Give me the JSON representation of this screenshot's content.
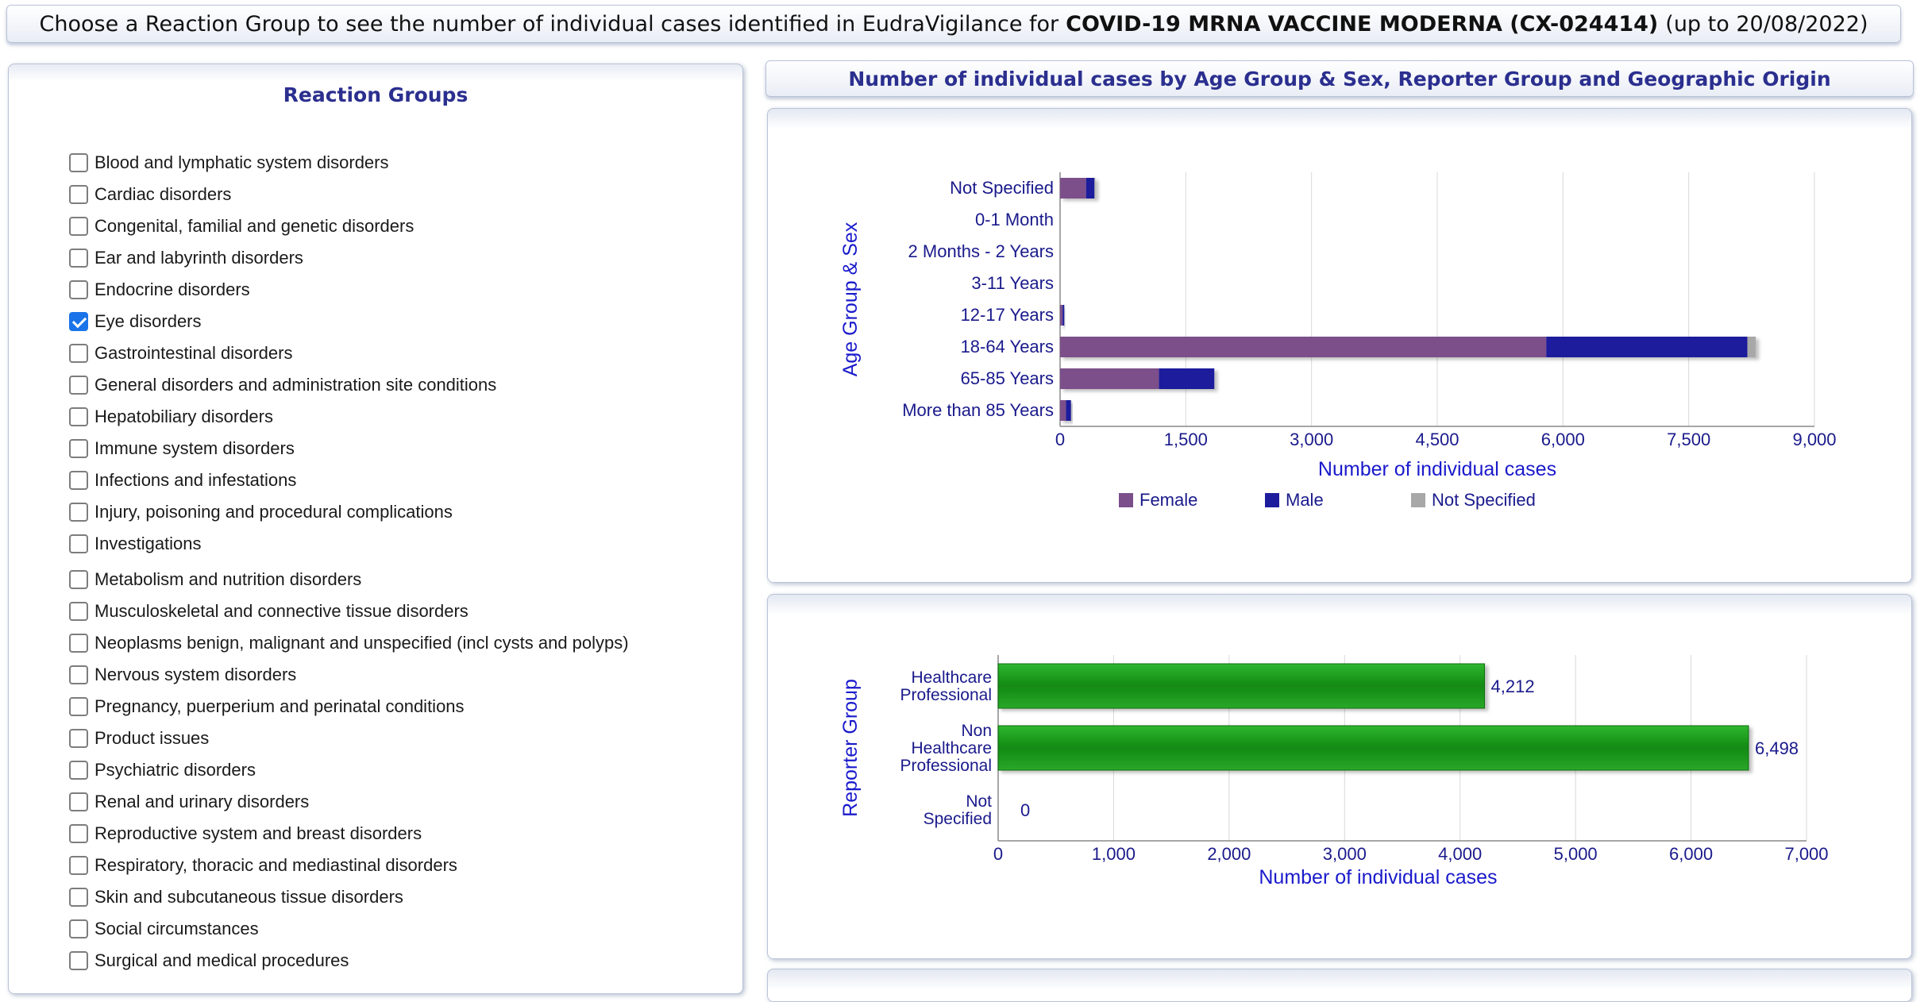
{
  "header": {
    "prefix": "Choose a Reaction Group to see the number of individual cases identified in EudraVigilance for",
    "product": "COVID-19 MRNA VACCINE MODERNA (CX-024414)",
    "suffix": "(up to 20/08/2022)"
  },
  "left_panel": {
    "title": "Reaction Groups",
    "items": [
      {
        "label": "Blood and lymphatic system disorders",
        "checked": false
      },
      {
        "label": "Cardiac disorders",
        "checked": false
      },
      {
        "label": "Congenital, familial and genetic disorders",
        "checked": false
      },
      {
        "label": "Ear and labyrinth disorders",
        "checked": false
      },
      {
        "label": "Endocrine disorders",
        "checked": false
      },
      {
        "label": "Eye disorders",
        "checked": true
      },
      {
        "label": "Gastrointestinal disorders",
        "checked": false
      },
      {
        "label": "General disorders and administration site conditions",
        "checked": false
      },
      {
        "label": "Hepatobiliary disorders",
        "checked": false
      },
      {
        "label": "Immune system disorders",
        "checked": false
      },
      {
        "label": "Infections and infestations",
        "checked": false
      },
      {
        "label": "Injury, poisoning and procedural complications",
        "checked": false
      },
      {
        "label": "Investigations",
        "checked": false
      },
      {
        "label": "Metabolism and nutrition disorders",
        "checked": false
      },
      {
        "label": "Musculoskeletal and connective tissue disorders",
        "checked": false
      },
      {
        "label": "Neoplasms benign, malignant and unspecified (incl cysts and polyps)",
        "checked": false
      },
      {
        "label": "Nervous system disorders",
        "checked": false
      },
      {
        "label": "Pregnancy, puerperium and perinatal conditions",
        "checked": false
      },
      {
        "label": "Product issues",
        "checked": false
      },
      {
        "label": "Psychiatric disorders",
        "checked": false
      },
      {
        "label": "Renal and urinary disorders",
        "checked": false
      },
      {
        "label": "Reproductive system and breast disorders",
        "checked": false
      },
      {
        "label": "Respiratory, thoracic and mediastinal disorders",
        "checked": false
      },
      {
        "label": "Skin and subcutaneous tissue disorders",
        "checked": false
      },
      {
        "label": "Social circumstances",
        "checked": false
      },
      {
        "label": "Surgical and medical procedures",
        "checked": false
      }
    ]
  },
  "right_title": "Number of individual cases by Age Group & Sex, Reporter Group and Geographic Origin",
  "colors": {
    "female": "#7b4f8a",
    "male": "#1c1c9c",
    "not_specified": "#a8a8a8",
    "reporter_bar": "#1e9a1e",
    "axis_text": "#1a1a8c",
    "axis_title": "#1a1acc"
  },
  "chart_data": [
    {
      "type": "bar",
      "orientation": "horizontal",
      "stacked": true,
      "categories": [
        "Not Specified",
        "0-1 Month",
        "2 Months - 2 Years",
        "3-11 Years",
        "12-17 Years",
        "18-64 Years",
        "65-85 Years",
        "More than 85 Years"
      ],
      "series": [
        {
          "name": "Female",
          "values": [
            310,
            0,
            0,
            0,
            30,
            5800,
            1180,
            70
          ]
        },
        {
          "name": "Male",
          "values": [
            100,
            0,
            0,
            0,
            20,
            2400,
            660,
            60
          ]
        },
        {
          "name": "Not Specified",
          "values": [
            10,
            0,
            0,
            0,
            0,
            100,
            0,
            0
          ]
        }
      ],
      "xlabel": "Number of individual cases",
      "ylabel": "Age Group & Sex",
      "xlim": [
        0,
        9000
      ],
      "xticks": [
        "0",
        "1,500",
        "3,000",
        "4,500",
        "6,000",
        "7,500",
        "9,000"
      ],
      "grid": true,
      "legend": "bottom"
    },
    {
      "type": "bar",
      "orientation": "horizontal",
      "categories": [
        "Healthcare Professional",
        "Non Healthcare Professional",
        "Not Specified"
      ],
      "category_lines": [
        [
          "Healthcare",
          "Professional"
        ],
        [
          "Non",
          "Healthcare",
          "Professional"
        ],
        [
          "Not",
          "Specified"
        ]
      ],
      "values": [
        4212,
        6498,
        0
      ],
      "data_labels": [
        "4,212",
        "6,498",
        "0"
      ],
      "xlabel": "Number of individual cases",
      "ylabel": "Reporter Group",
      "xlim": [
        0,
        7000
      ],
      "xticks": [
        "0",
        "1,000",
        "2,000",
        "3,000",
        "4,000",
        "5,000",
        "6,000",
        "7,000"
      ],
      "grid": true
    }
  ]
}
